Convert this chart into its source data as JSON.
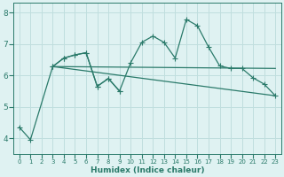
{
  "bg_color": "#dff2f2",
  "grid_color": "#c0dede",
  "line_color": "#2a7a6a",
  "xlabel": "Humidex (Indice chaleur)",
  "xlim": [
    -0.5,
    23.5
  ],
  "ylim": [
    3.5,
    8.3
  ],
  "yticks": [
    4,
    5,
    6,
    7,
    8
  ],
  "xticks": [
    0,
    1,
    2,
    3,
    4,
    5,
    6,
    7,
    8,
    9,
    10,
    11,
    12,
    13,
    14,
    15,
    16,
    17,
    18,
    19,
    20,
    21,
    22,
    23
  ],
  "line1_x": [
    0,
    1,
    3,
    4,
    5,
    6,
    7,
    8,
    9,
    10,
    11,
    12,
    13,
    14,
    15,
    16,
    17,
    18,
    19,
    20,
    21,
    22,
    23
  ],
  "line1_y": [
    4.35,
    3.95,
    6.28,
    6.55,
    6.65,
    6.72,
    5.65,
    5.9,
    5.5,
    6.4,
    7.05,
    7.25,
    7.05,
    6.55,
    7.78,
    7.58,
    6.9,
    6.3,
    6.22,
    6.22,
    5.92,
    5.72,
    5.35
  ],
  "line2_x": [
    3,
    4,
    5,
    6,
    7,
    8,
    9
  ],
  "line2_y": [
    6.28,
    6.55,
    6.65,
    6.72,
    5.65,
    5.9,
    5.5
  ],
  "line3_x": [
    3,
    23
  ],
  "line3_y": [
    6.28,
    6.22
  ],
  "line4_x": [
    3,
    23
  ],
  "line4_y": [
    6.28,
    5.35
  ]
}
